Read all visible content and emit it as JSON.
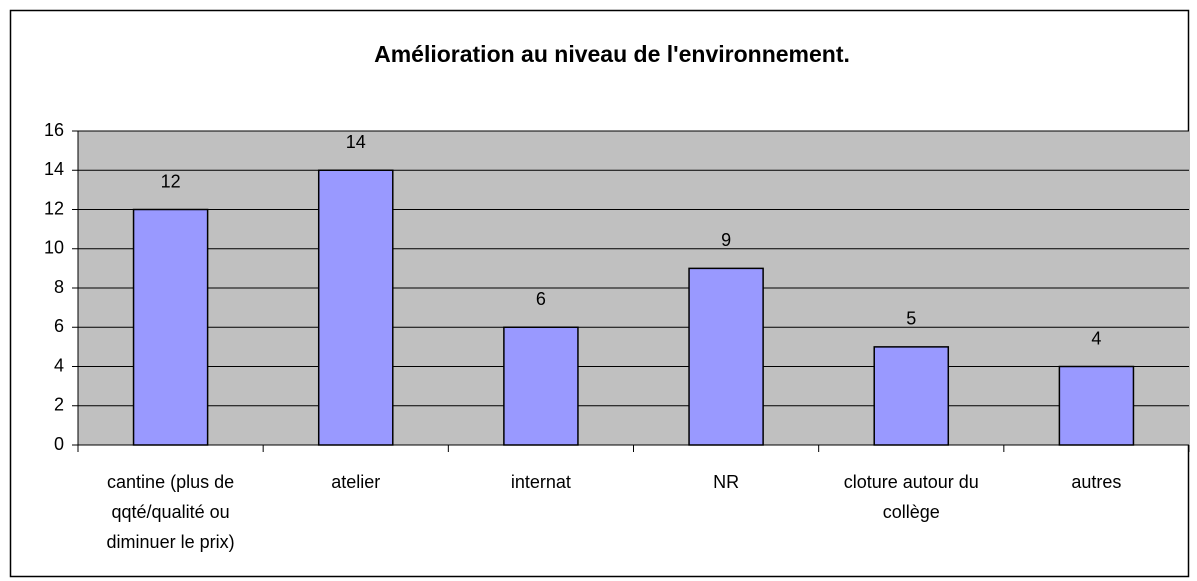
{
  "chart_data": {
    "type": "bar",
    "title": "Amélioration au niveau de l'environnement.",
    "categories": [
      "cantine (plus de qqté/qualité ou diminuer le prix)",
      "atelier",
      "internat",
      "NR",
      "cloture autour du collège",
      "autres"
    ],
    "values": [
      12,
      14,
      6,
      9,
      5,
      4
    ],
    "color": "#9999ff",
    "ylim": [
      0,
      16
    ],
    "yticks": [
      0,
      2,
      4,
      6,
      8,
      10,
      12,
      14,
      16
    ],
    "grid": true
  }
}
